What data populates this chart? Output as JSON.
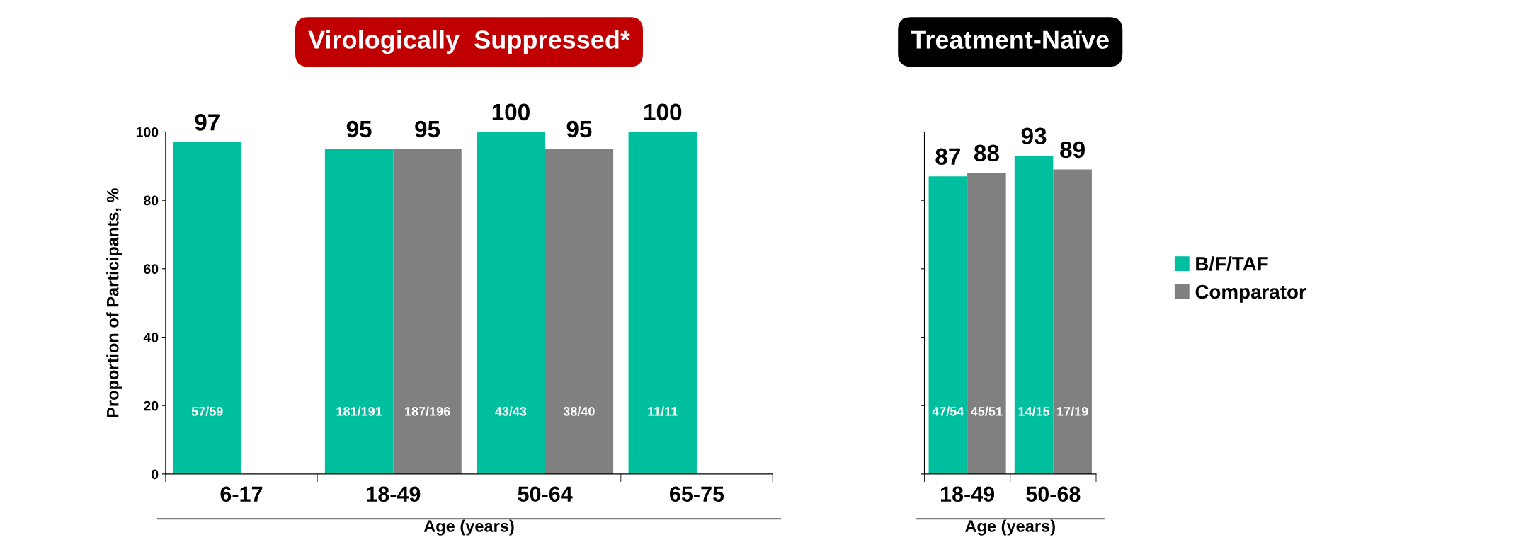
{
  "chart_data": [
    {
      "type": "bar",
      "title": "Virologically  Suppressed*",
      "xlabel": "Age (years)",
      "ylabel": "Proportion of Participants, %",
      "categories": [
        "6-17",
        "18-49",
        "50-64",
        "65-75"
      ],
      "series": [
        {
          "color": "#00bf9f",
          "values": [
            97,
            95,
            100,
            100
          ]
        },
        {
          "color": "#808080",
          "values": [
            null,
            95,
            95,
            null
          ]
        }
      ],
      "annotations": [
        "57/59",
        "181/191",
        "187/196",
        "43/43",
        "38/40",
        "11/11"
      ],
      "ylim": [
        0,
        100
      ],
      "yticks": [
        0,
        20,
        40,
        60,
        80,
        100
      ],
      "data_labels": true,
      "grid": false,
      "legend": false
    },
    {
      "type": "bar",
      "title": "Treatment-Naïve",
      "xlabel": "Age (years)",
      "categories": [
        "18-49",
        "50-68"
      ],
      "series": [
        {
          "name": "B/F/TAF",
          "color": "#00bf9f",
          "values": [
            87,
            93
          ]
        },
        {
          "name": "Comparator",
          "color": "#808080",
          "values": [
            88,
            89
          ]
        }
      ],
      "annotations": [
        "47/54",
        "45/51",
        "14/15",
        "17/19"
      ],
      "ylim": [
        0,
        100
      ],
      "yticks": [
        0,
        20,
        40,
        60,
        80,
        100
      ],
      "tick_labels": "x",
      "data_labels": true,
      "grid": false,
      "legend": "right"
    }
  ]
}
